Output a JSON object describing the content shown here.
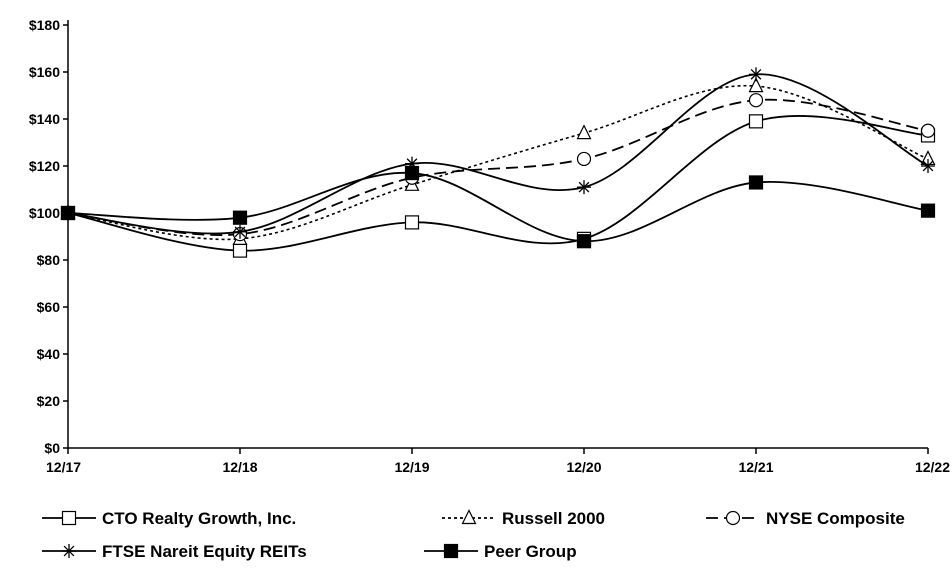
{
  "chart_data": {
    "type": "line",
    "categories": [
      "12/17",
      "12/18",
      "12/19",
      "12/20",
      "12/21",
      "12/22"
    ],
    "ylim": [
      0,
      180
    ],
    "yticks": [
      0,
      20,
      40,
      60,
      80,
      100,
      120,
      140,
      160,
      180
    ],
    "ytick_labels": [
      "$0",
      "$20",
      "$40",
      "$60",
      "$80",
      "$100",
      "$120",
      "$140",
      "$160",
      "$180"
    ],
    "grid": false,
    "legend_position": "bottom",
    "series": [
      {
        "name": "CTO Realty Growth, Inc.",
        "values": [
          100,
          84,
          96,
          89,
          139,
          133
        ],
        "marker": "square-open",
        "dash": "solid"
      },
      {
        "name": "Russell 2000",
        "values": [
          100,
          89,
          112,
          134,
          154,
          123
        ],
        "marker": "triangle-open",
        "dash": "dotted"
      },
      {
        "name": "NYSE Composite",
        "values": [
          100,
          91,
          115,
          123,
          148,
          135
        ],
        "marker": "circle-open",
        "dash": "dashed"
      },
      {
        "name": "FTSE Nareit Equity REITs",
        "values": [
          100,
          92,
          121,
          111,
          159,
          120
        ],
        "marker": "asterisk",
        "dash": "solid"
      },
      {
        "name": "Peer Group",
        "values": [
          100,
          98,
          117,
          88,
          113,
          101
        ],
        "marker": "square-filled",
        "dash": "solid"
      }
    ]
  }
}
